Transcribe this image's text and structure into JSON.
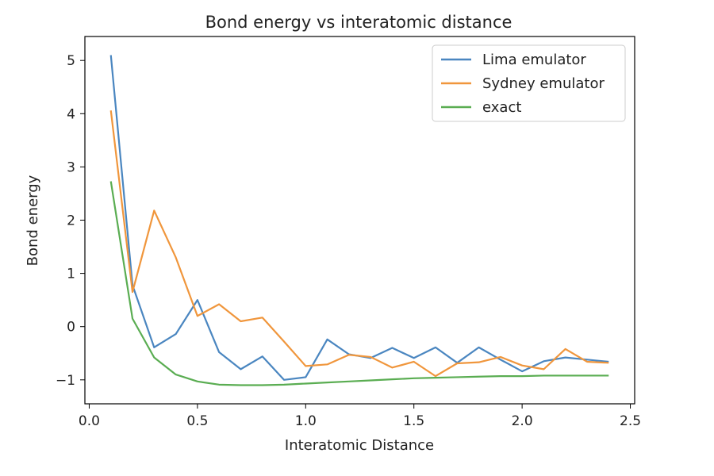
{
  "chart_data": {
    "type": "line",
    "title": "Bond energy vs interatomic distance",
    "xlabel": "Interatomic Distance",
    "ylabel": "Bond energy",
    "xlim": [
      -0.02,
      2.52
    ],
    "ylim": [
      -1.45,
      5.45
    ],
    "xticks": [
      0.0,
      0.5,
      1.0,
      1.5,
      2.0,
      2.5
    ],
    "xtick_labels": [
      "0.0",
      "0.5",
      "1.0",
      "1.5",
      "2.0",
      "2.5"
    ],
    "yticks": [
      -1,
      0,
      1,
      2,
      3,
      4,
      5
    ],
    "ytick_labels": [
      "−1",
      "0",
      "1",
      "2",
      "3",
      "4",
      "5"
    ],
    "grid": false,
    "legend_position": "top-right",
    "x": [
      0.1,
      0.2,
      0.3,
      0.4,
      0.5,
      0.6,
      0.7,
      0.8,
      0.9,
      1.0,
      1.1,
      1.2,
      1.3,
      1.4,
      1.5,
      1.6,
      1.7,
      1.8,
      1.9,
      2.0,
      2.1,
      2.2,
      2.3,
      2.4
    ],
    "series": [
      {
        "name": "Lima emulator",
        "color": "#4a86c0",
        "values": [
          5.1,
          0.78,
          -0.39,
          -0.14,
          0.5,
          -0.48,
          -0.8,
          -0.56,
          -1.0,
          -0.95,
          -0.24,
          -0.52,
          -0.59,
          -0.4,
          -0.59,
          -0.39,
          -0.68,
          -0.39,
          -0.62,
          -0.84,
          -0.65,
          -0.58,
          -0.62,
          -0.66
        ]
      },
      {
        "name": "Sydney emulator",
        "color": "#f0963c",
        "values": [
          4.06,
          0.65,
          2.18,
          1.3,
          0.2,
          0.42,
          0.1,
          0.17,
          -0.28,
          -0.74,
          -0.71,
          -0.53,
          -0.57,
          -0.77,
          -0.66,
          -0.93,
          -0.69,
          -0.67,
          -0.57,
          -0.73,
          -0.8,
          -0.42,
          -0.66,
          -0.68
        ]
      },
      {
        "name": "exact",
        "color": "#5aad52",
        "values": [
          2.73,
          0.15,
          -0.58,
          -0.9,
          -1.03,
          -1.09,
          -1.1,
          -1.1,
          -1.09,
          -1.07,
          -1.05,
          -1.03,
          -1.01,
          -0.99,
          -0.97,
          -0.96,
          -0.95,
          -0.94,
          -0.93,
          -0.93,
          -0.92,
          -0.92,
          -0.92,
          -0.92
        ]
      }
    ]
  }
}
